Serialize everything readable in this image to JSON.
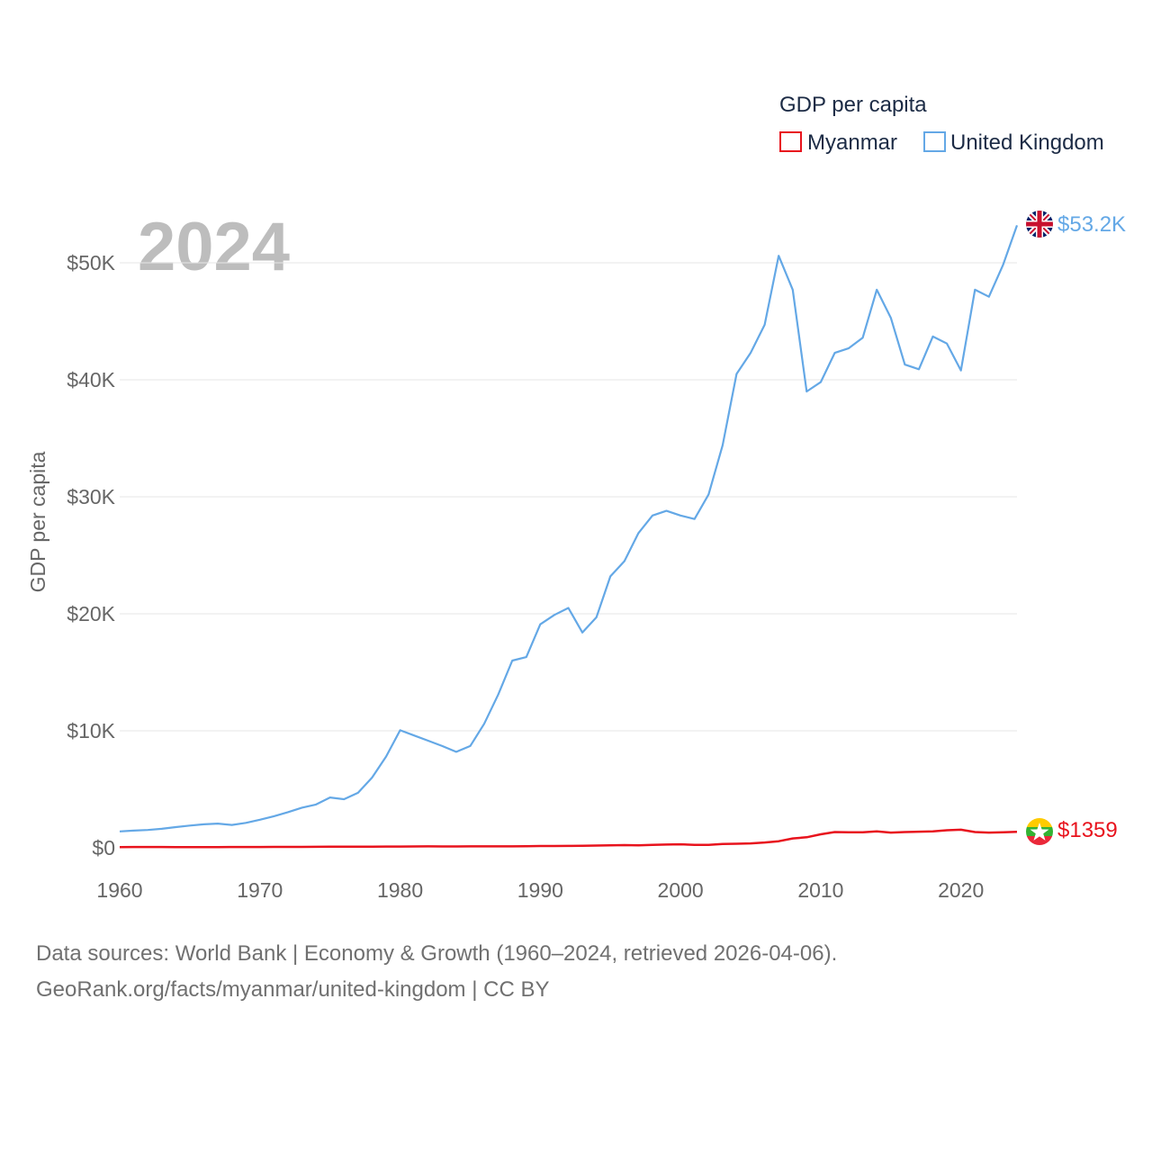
{
  "chart_data": {
    "type": "line",
    "title": "GDP per capita",
    "ylabel": "GDP per capita",
    "xlabel": "",
    "xlim": [
      1960,
      2024
    ],
    "ylim": [
      0,
      55000
    ],
    "year_label": "2024",
    "x_ticks": [
      1960,
      1970,
      1980,
      1990,
      2000,
      2010,
      2020
    ],
    "x_tick_labels": [
      "1960",
      "1970",
      "1980",
      "1990",
      "2000",
      "2010",
      "2020"
    ],
    "y_ticks": [
      0,
      10000,
      20000,
      30000,
      40000,
      50000
    ],
    "y_tick_labels": [
      "$0",
      "$10K",
      "$20K",
      "$30K",
      "$40K",
      "$50K"
    ],
    "x": [
      1960,
      1961,
      1962,
      1963,
      1964,
      1965,
      1966,
      1967,
      1968,
      1969,
      1970,
      1971,
      1972,
      1973,
      1974,
      1975,
      1976,
      1977,
      1978,
      1979,
      1980,
      1981,
      1982,
      1983,
      1984,
      1985,
      1986,
      1987,
      1988,
      1989,
      1990,
      1991,
      1992,
      1993,
      1994,
      1995,
      1996,
      1997,
      1998,
      1999,
      2000,
      2001,
      2002,
      2003,
      2004,
      2005,
      2006,
      2007,
      2008,
      2009,
      2010,
      2011,
      2012,
      2013,
      2014,
      2015,
      2016,
      2017,
      2018,
      2019,
      2020,
      2021,
      2022,
      2023,
      2024
    ],
    "series": [
      {
        "name": "Myanmar",
        "color": "#e8131d",
        "end_label": "$1359",
        "flag": "myanmar-flag",
        "values": [
          64,
          66,
          68,
          66,
          62,
          63,
          64,
          65,
          66,
          67,
          70,
          74,
          78,
          80,
          84,
          90,
          92,
          95,
          100,
          105,
          110,
          112,
          120,
          118,
          115,
          120,
          125,
          122,
          120,
          140,
          150,
          155,
          160,
          170,
          190,
          210,
          230,
          210,
          250,
          280,
          300,
          250,
          250,
          330,
          350,
          380,
          450,
          560,
          800,
          900,
          1150,
          1350,
          1330,
          1320,
          1400,
          1300,
          1350,
          1380,
          1400,
          1500,
          1550,
          1350,
          1300,
          1320,
          1359
        ]
      },
      {
        "name": "United Kingdom",
        "color": "#64a8e6",
        "end_label": "$53.2K",
        "flag": "united-kingdom-flag",
        "values": [
          1400,
          1470,
          1520,
          1620,
          1770,
          1900,
          2010,
          2070,
          1950,
          2130,
          2400,
          2700,
          3050,
          3430,
          3700,
          4300,
          4150,
          4700,
          6000,
          7800,
          10050,
          9600,
          9150,
          8700,
          8200,
          8700,
          10600,
          13100,
          16000,
          16300,
          19100,
          19900,
          20500,
          18400,
          19700,
          23200,
          24500,
          26900,
          28400,
          28800,
          28400,
          28100,
          30200,
          34400,
          40500,
          42300,
          44700,
          50600,
          47700,
          39000,
          39800,
          42300,
          42700,
          43600,
          47700,
          45300,
          41300,
          40900,
          43700,
          43100,
          40800,
          47700,
          47100,
          49800,
          53200
        ]
      }
    ]
  },
  "footer": {
    "line1": "Data sources: World Bank | Economy & Growth (1960–2024, retrieved 2026-04-06).",
    "line2": "GeoRank.org/facts/myanmar/united-kingdom | CC BY"
  }
}
